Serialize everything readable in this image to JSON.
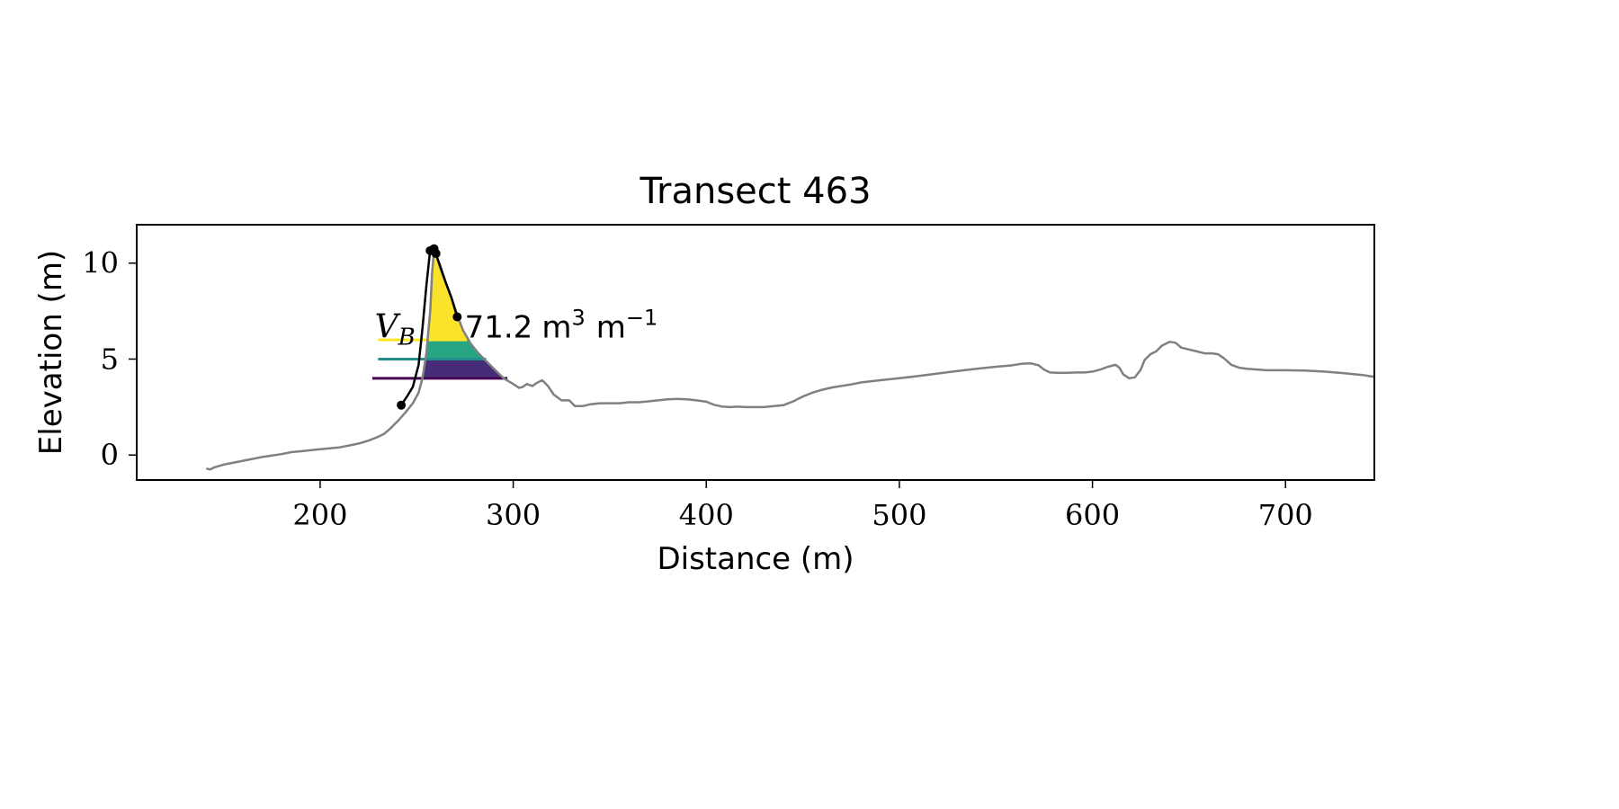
{
  "chart_data": {
    "type": "line",
    "title": "Transect 463",
    "xlabel": "Distance (m)",
    "ylabel": "Elevation (m)",
    "xlim": [
      105,
      746
    ],
    "ylim": [
      -1.3,
      12
    ],
    "xticks": [
      200,
      300,
      400,
      500,
      600,
      700
    ],
    "yticks": [
      0,
      5,
      10
    ],
    "xtick_labels": [
      "200",
      "300",
      "400",
      "500",
      "600",
      "700"
    ],
    "ytick_labels": [
      "0",
      "5",
      "10"
    ],
    "grid": false,
    "annotation": {
      "symbol": "V",
      "subscript": "B",
      "value": "71.2",
      "unit": "m",
      "unit_exp": "3",
      "unit2": "m",
      "unit2_exp": "−1",
      "x": 232,
      "y": 6.4
    },
    "profile": {
      "color": "#808080",
      "points": [
        [
          141,
          -0.7
        ],
        [
          143,
          -0.75
        ],
        [
          145,
          -0.65
        ],
        [
          150,
          -0.5
        ],
        [
          160,
          -0.3
        ],
        [
          170,
          -0.1
        ],
        [
          180,
          0.05
        ],
        [
          185,
          0.15
        ],
        [
          190,
          0.2
        ],
        [
          195,
          0.25
        ],
        [
          200,
          0.3
        ],
        [
          205,
          0.35
        ],
        [
          210,
          0.4
        ],
        [
          215,
          0.5
        ],
        [
          220,
          0.6
        ],
        [
          225,
          0.75
        ],
        [
          230,
          0.95
        ],
        [
          233,
          1.1
        ],
        [
          236,
          1.35
        ],
        [
          240,
          1.75
        ],
        [
          244,
          2.2
        ],
        [
          248,
          2.7
        ],
        [
          251,
          3.25
        ],
        [
          253,
          4.0
        ],
        [
          255,
          5.3
        ],
        [
          257,
          7.5
        ],
        [
          258,
          9.5
        ],
        [
          259,
          10.7
        ],
        [
          260,
          10.5
        ],
        [
          262,
          9.8
        ],
        [
          265,
          9.0
        ],
        [
          268,
          8.2
        ],
        [
          271,
          7.3
        ],
        [
          274,
          6.5
        ],
        [
          278,
          5.8
        ],
        [
          282,
          5.3
        ],
        [
          286,
          4.9
        ],
        [
          290,
          4.5
        ],
        [
          295,
          4.0
        ],
        [
          300,
          3.7
        ],
        [
          303,
          3.5
        ],
        [
          305,
          3.55
        ],
        [
          307,
          3.7
        ],
        [
          310,
          3.6
        ],
        [
          312,
          3.75
        ],
        [
          315,
          3.9
        ],
        [
          318,
          3.6
        ],
        [
          321,
          3.15
        ],
        [
          325,
          2.85
        ],
        [
          329,
          2.85
        ],
        [
          332,
          2.55
        ],
        [
          336,
          2.55
        ],
        [
          340,
          2.65
        ],
        [
          345,
          2.7
        ],
        [
          350,
          2.7
        ],
        [
          355,
          2.7
        ],
        [
          360,
          2.75
        ],
        [
          365,
          2.75
        ],
        [
          370,
          2.8
        ],
        [
          375,
          2.85
        ],
        [
          380,
          2.9
        ],
        [
          385,
          2.93
        ],
        [
          390,
          2.9
        ],
        [
          395,
          2.85
        ],
        [
          400,
          2.78
        ],
        [
          404,
          2.62
        ],
        [
          408,
          2.53
        ],
        [
          412,
          2.5
        ],
        [
          416,
          2.52
        ],
        [
          420,
          2.5
        ],
        [
          425,
          2.5
        ],
        [
          430,
          2.5
        ],
        [
          435,
          2.55
        ],
        [
          440,
          2.6
        ],
        [
          445,
          2.8
        ],
        [
          450,
          3.05
        ],
        [
          455,
          3.25
        ],
        [
          460,
          3.4
        ],
        [
          465,
          3.52
        ],
        [
          470,
          3.6
        ],
        [
          475,
          3.68
        ],
        [
          480,
          3.78
        ],
        [
          490,
          3.9
        ],
        [
          500,
          4.0
        ],
        [
          510,
          4.12
        ],
        [
          520,
          4.25
        ],
        [
          530,
          4.38
        ],
        [
          540,
          4.5
        ],
        [
          550,
          4.6
        ],
        [
          558,
          4.67
        ],
        [
          563,
          4.75
        ],
        [
          568,
          4.78
        ],
        [
          572,
          4.68
        ],
        [
          575,
          4.45
        ],
        [
          578,
          4.3
        ],
        [
          582,
          4.28
        ],
        [
          587,
          4.28
        ],
        [
          592,
          4.3
        ],
        [
          596,
          4.3
        ],
        [
          600,
          4.35
        ],
        [
          604,
          4.45
        ],
        [
          608,
          4.6
        ],
        [
          612,
          4.7
        ],
        [
          614,
          4.55
        ],
        [
          616,
          4.2
        ],
        [
          619,
          4.0
        ],
        [
          622,
          4.05
        ],
        [
          625,
          4.45
        ],
        [
          627,
          4.95
        ],
        [
          630,
          5.25
        ],
        [
          633,
          5.4
        ],
        [
          636,
          5.7
        ],
        [
          640,
          5.9
        ],
        [
          643,
          5.85
        ],
        [
          646,
          5.6
        ],
        [
          650,
          5.5
        ],
        [
          654,
          5.4
        ],
        [
          658,
          5.3
        ],
        [
          662,
          5.3
        ],
        [
          665,
          5.25
        ],
        [
          668,
          5.05
        ],
        [
          672,
          4.7
        ],
        [
          676,
          4.55
        ],
        [
          680,
          4.5
        ],
        [
          690,
          4.42
        ],
        [
          700,
          4.42
        ],
        [
          710,
          4.4
        ],
        [
          720,
          4.35
        ],
        [
          730,
          4.27
        ],
        [
          740,
          4.17
        ],
        [
          746,
          4.07
        ]
      ]
    },
    "dune": {
      "color": "#000000",
      "points": [
        [
          242,
          2.6
        ],
        [
          245,
          3.05
        ],
        [
          248,
          3.55
        ],
        [
          251,
          4.7
        ],
        [
          253,
          6.6
        ],
        [
          255,
          8.8
        ],
        [
          257,
          10.7
        ],
        [
          258,
          10.75
        ],
        [
          259,
          10.6
        ],
        [
          260,
          10.45
        ],
        [
          262,
          9.9
        ],
        [
          265,
          9.0
        ],
        [
          268,
          8.2
        ],
        [
          271,
          7.2
        ]
      ],
      "markers": [
        [
          242,
          2.6
        ],
        [
          257,
          10.65
        ],
        [
          259,
          10.75
        ],
        [
          260,
          10.5
        ],
        [
          271,
          7.2
        ]
      ]
    },
    "bands": [
      {
        "color": "#440154",
        "level": 4.0,
        "top": 5.0,
        "line_from": 227,
        "line_to": 297
      },
      {
        "color": "#21908d",
        "level": 5.0,
        "top": 6.0,
        "line_from": 230,
        "line_to": 286
      },
      {
        "color": "#fde725",
        "level": 6.0,
        "top": 11.0,
        "line_from": 230,
        "line_to": 276
      }
    ],
    "band_fill": [
      {
        "color": "#472c7a",
        "from_level": 4.0,
        "to_level": 5.0
      },
      {
        "color": "#27a582",
        "from_level": 5.0,
        "to_level": 6.0
      },
      {
        "color": "#f8e32a",
        "from_level": 6.0,
        "to_level": 11.0
      }
    ]
  }
}
